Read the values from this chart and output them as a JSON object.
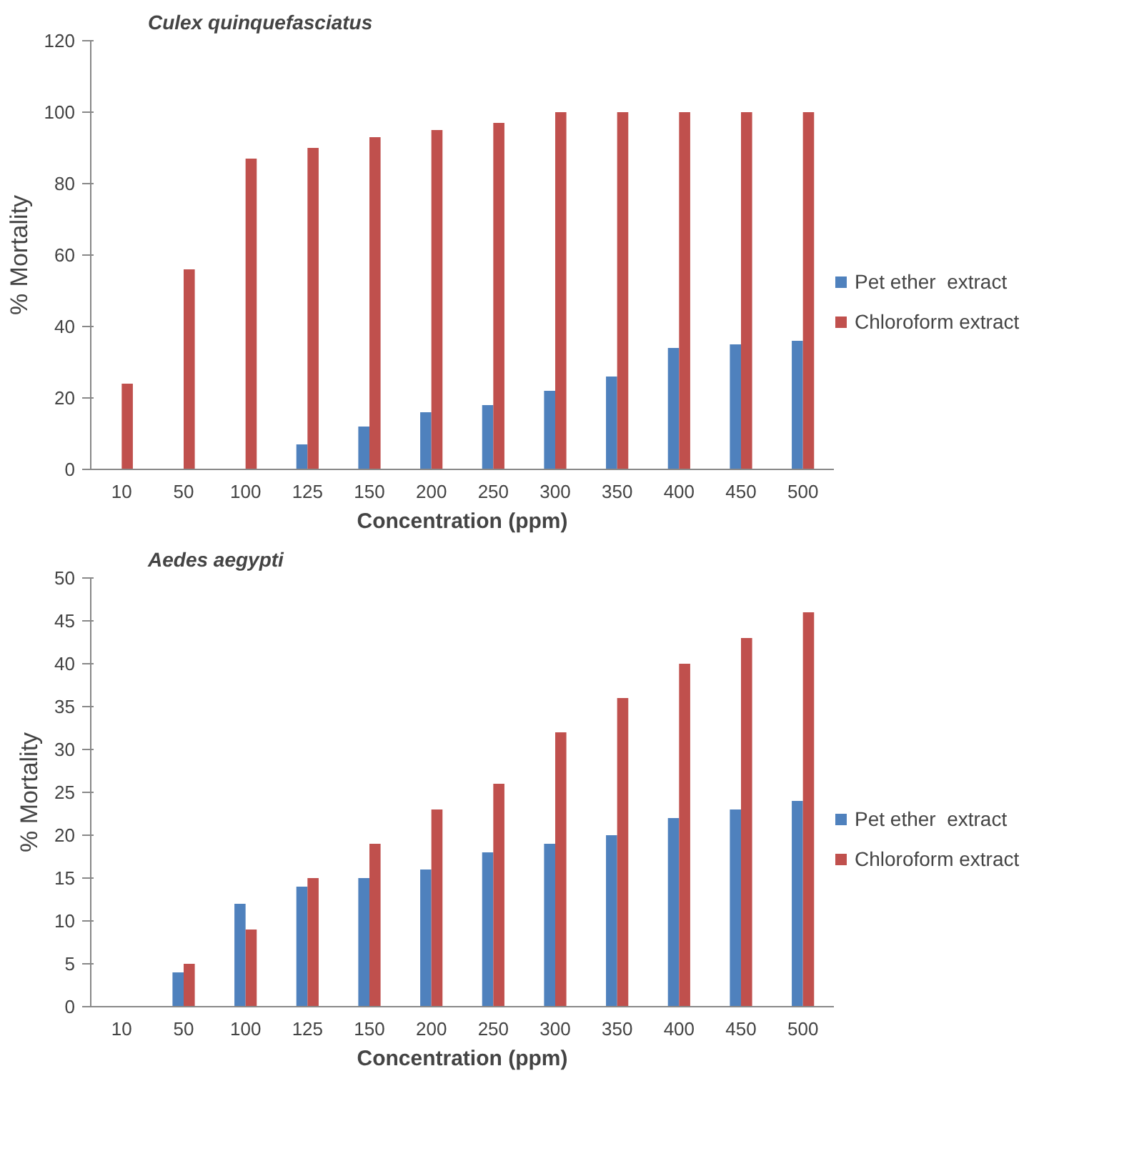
{
  "chart_data": [
    {
      "type": "bar",
      "title": "Culex quinquefasciatus",
      "xlabel": "Concentration (ppm)",
      "ylabel": "% Mortality",
      "categories": [
        "10",
        "50",
        "100",
        "125",
        "150",
        "200",
        "250",
        "300",
        "350",
        "400",
        "450",
        "500"
      ],
      "series": [
        {
          "name": "Pet ether  extract",
          "color": "#4f81bd",
          "values": [
            0,
            0,
            0,
            7,
            12,
            16,
            18,
            22,
            26,
            34,
            35,
            36
          ]
        },
        {
          "name": "Chloroform extract",
          "color": "#c0504d",
          "values": [
            24,
            56,
            87,
            90,
            93,
            95,
            97,
            100,
            100,
            100,
            100,
            100
          ]
        }
      ],
      "ylim": [
        0,
        120
      ],
      "yticks": [
        0,
        20,
        40,
        60,
        80,
        100,
        120
      ],
      "grid": false,
      "legend": "right"
    },
    {
      "type": "bar",
      "title": "Aedes aegypti",
      "xlabel": "Concentration (ppm)",
      "ylabel": "% Mortality",
      "categories": [
        "10",
        "50",
        "100",
        "125",
        "150",
        "200",
        "250",
        "300",
        "350",
        "400",
        "450",
        "500"
      ],
      "series": [
        {
          "name": "Pet ether  extract",
          "color": "#4f81bd",
          "values": [
            0,
            4,
            12,
            14,
            15,
            16,
            18,
            19,
            20,
            22,
            23,
            24
          ]
        },
        {
          "name": "Chloroform extract",
          "color": "#c0504d",
          "values": [
            0,
            5,
            9,
            15,
            19,
            23,
            26,
            32,
            36,
            40,
            43,
            46
          ]
        }
      ],
      "ylim": [
        0,
        50
      ],
      "yticks": [
        0,
        5,
        10,
        15,
        20,
        25,
        30,
        35,
        40,
        45,
        50
      ],
      "grid": false,
      "legend": "right"
    }
  ]
}
